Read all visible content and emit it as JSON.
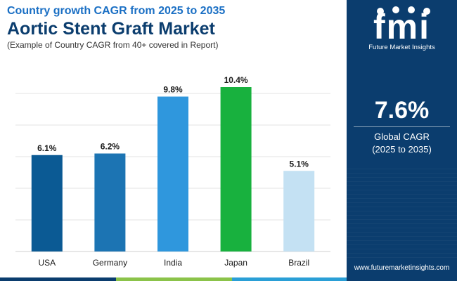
{
  "header": {
    "subtitle": "Country growth CAGR from 2025 to 2035",
    "title": "Aortic Stent Graft Market",
    "note": "(Example of Country CAGR from 40+ covered in Report)"
  },
  "brand": {
    "logo_letters": "fmi",
    "name": "Future Market Insights",
    "website": "www.futuremarketinsights.com"
  },
  "kpi": {
    "value": "7.6%",
    "label": "Global CAGR",
    "period": "(2025 to 2035)"
  },
  "colors": {
    "panel": "#0b3d6e",
    "bottom_bar": [
      "#0b3d6e",
      "#8bc34a",
      "#2a9fd6"
    ]
  },
  "chart_data": {
    "type": "bar",
    "categories": [
      "USA",
      "Germany",
      "India",
      "Japan",
      "Brazil"
    ],
    "values": [
      6.1,
      6.2,
      9.8,
      10.4,
      5.1
    ],
    "data_labels": [
      "6.1%",
      "6.2%",
      "9.8%",
      "10.4%",
      "5.1%"
    ],
    "colors": [
      "#0b5a94",
      "#1c74b3",
      "#2f97dd",
      "#18b13e",
      "#c4e1f3"
    ],
    "ylim": [
      0,
      12
    ],
    "grid": true,
    "gridline_values": [
      2,
      4,
      6,
      8,
      10
    ],
    "legend": "none"
  }
}
